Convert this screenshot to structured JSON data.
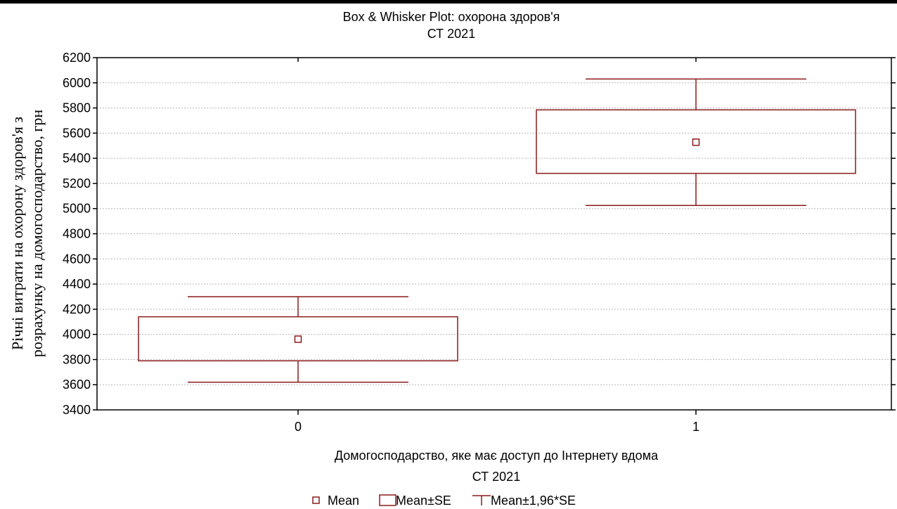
{
  "chart_data": {
    "type": "box",
    "title": "Box & Whisker Plot: охорона здоров'я",
    "subtitle": "СТ 2021",
    "xlabel": "Домогосподарство, яке має доступ до Інтернету вдома",
    "xlabel_sub": "СТ 2021",
    "ylabel_line1": "Річні витрати на охорону здоров'я з",
    "ylabel_line2": "розрахунку на домогосподарство, грн",
    "ylim": [
      3400,
      6200
    ],
    "yticks": [
      "3400",
      "3600",
      "3800",
      "4000",
      "4200",
      "4400",
      "4600",
      "4800",
      "5000",
      "5200",
      "5400",
      "5600",
      "5800",
      "6000",
      "6200"
    ],
    "categories": [
      "0",
      "1"
    ],
    "groups": [
      {
        "category": "0",
        "mean": 3962,
        "se_low": 3790,
        "se_high": 4140,
        "ci_low": 3620,
        "ci_high": 4300
      },
      {
        "category": "1",
        "mean": 5528,
        "se_low": 5280,
        "se_high": 5785,
        "ci_low": 5025,
        "ci_high": 6030
      }
    ],
    "grid": true,
    "color": "#8b1a1a",
    "legend": {
      "position": "bottom",
      "items": [
        {
          "symbol": "square",
          "label": "Mean"
        },
        {
          "symbol": "box",
          "label": "Mean±SE"
        },
        {
          "symbol": "whisker",
          "label": "Mean±1,96*SE"
        }
      ]
    }
  }
}
